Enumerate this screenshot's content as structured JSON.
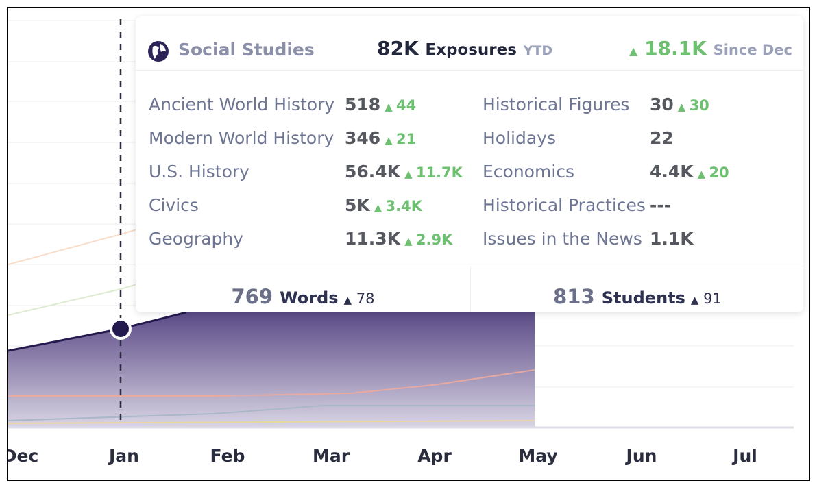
{
  "axis": {
    "months": [
      "Dec",
      "Jan",
      "Feb",
      "Mar",
      "Apr",
      "May",
      "Jun",
      "Jul"
    ]
  },
  "tooltip": {
    "subject": "Social Studies",
    "exposures": "82K",
    "exposures_label": "Exposures",
    "period": "YTD",
    "change": "18.1K",
    "change_label": "Since Dec",
    "topics": [
      {
        "name": "Ancient World History",
        "value": "518",
        "change": "44"
      },
      {
        "name": "Modern World History",
        "value": "346",
        "change": "21"
      },
      {
        "name": "U.S. History",
        "value": "56.4K",
        "change": "11.7K"
      },
      {
        "name": "Civics",
        "value": "5K",
        "change": "3.4K"
      },
      {
        "name": "Geography",
        "value": "11.3K",
        "change": "2.9K"
      },
      {
        "name": "Historical Figures",
        "value": "30",
        "change": "30"
      },
      {
        "name": "Holidays",
        "value": "22"
      },
      {
        "name": "Economics",
        "value": "4.4K",
        "change": "20"
      },
      {
        "name": "Historical Practices",
        "value": "---"
      },
      {
        "name": "Issues in the News",
        "value": "1.1K"
      }
    ],
    "words": {
      "value": "769",
      "label": "Words",
      "change": "78"
    },
    "students": {
      "value": "813",
      "label": "Students",
      "change": "91"
    }
  }
}
